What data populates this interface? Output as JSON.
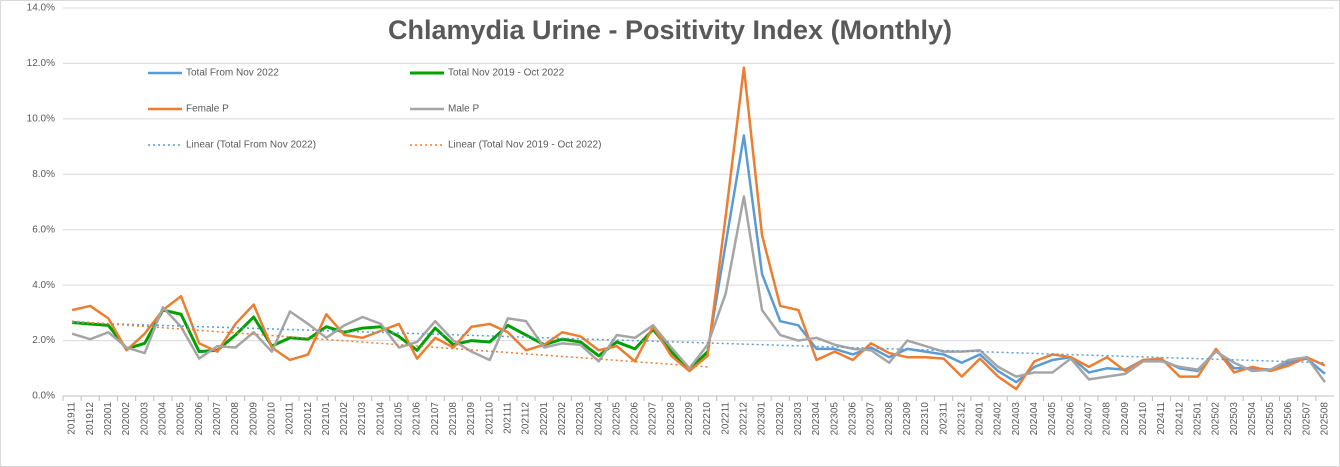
{
  "chart_data": {
    "type": "line",
    "title": "Chlamydia Urine - Positivity Index (Monthly)",
    "categories": [
      "201911",
      "201912",
      "202001",
      "202002",
      "202003",
      "202004",
      "202005",
      "202006",
      "202007",
      "202008",
      "202009",
      "202010",
      "202011",
      "202012",
      "202101",
      "202102",
      "202103",
      "202104",
      "202105",
      "202106",
      "202107",
      "202108",
      "202109",
      "202110",
      "202111",
      "202112",
      "202201",
      "202202",
      "202203",
      "202204",
      "202205",
      "202206",
      "202207",
      "202208",
      "202209",
      "202210",
      "202211",
      "202212",
      "202301",
      "202302",
      "202303",
      "202304",
      "202305",
      "202306",
      "202307",
      "202308",
      "202309",
      "202310",
      "202311",
      "202312",
      "202401",
      "202402",
      "202403",
      "202404",
      "202405",
      "202406",
      "202407",
      "202408",
      "202409",
      "202410",
      "202411",
      "202412",
      "202501",
      "202502",
      "202503",
      "202504",
      "202505",
      "202506",
      "202507",
      "202508"
    ],
    "series": [
      {
        "name": "Total From Nov 2022",
        "color": "#5b9bd5",
        "width": 2.5,
        "values": [
          null,
          null,
          null,
          null,
          null,
          null,
          null,
          null,
          null,
          null,
          null,
          null,
          null,
          null,
          null,
          null,
          null,
          null,
          null,
          null,
          null,
          null,
          null,
          null,
          null,
          null,
          null,
          null,
          null,
          null,
          null,
          null,
          null,
          null,
          null,
          1.6,
          5.5,
          9.4,
          4.4,
          2.7,
          2.55,
          1.7,
          1.7,
          1.5,
          1.75,
          1.4,
          1.7,
          1.6,
          1.5,
          1.2,
          1.5,
          0.9,
          0.5,
          1.05,
          1.3,
          1.4,
          0.85,
          1.0,
          0.95,
          1.3,
          1.3,
          1.0,
          0.9,
          1.65,
          1.0,
          1.0,
          0.95,
          1.2,
          1.35,
          0.8
        ]
      },
      {
        "name": "Total Nov 2019 - Oct 2022",
        "color": "#00a000",
        "width": 3,
        "values": [
          2.65,
          2.6,
          2.55,
          1.7,
          1.9,
          3.1,
          2.95,
          1.6,
          1.65,
          2.2,
          2.85,
          1.8,
          2.1,
          2.05,
          2.5,
          2.3,
          2.45,
          2.5,
          2.15,
          1.65,
          2.45,
          1.85,
          2.0,
          1.95,
          2.55,
          2.2,
          1.85,
          2.05,
          1.95,
          1.45,
          1.95,
          1.7,
          2.4,
          1.6,
          0.95,
          1.6,
          null,
          null,
          null,
          null,
          null,
          null,
          null,
          null,
          null,
          null,
          null,
          null,
          null,
          null,
          null,
          null,
          null,
          null,
          null,
          null,
          null,
          null,
          null,
          null,
          null,
          null,
          null,
          null,
          null,
          null,
          null,
          null,
          null,
          null
        ]
      },
      {
        "name": "Female P",
        "color": "#ed7d31",
        "width": 2.5,
        "values": [
          3.1,
          3.25,
          2.8,
          1.65,
          2.25,
          3.1,
          3.6,
          1.9,
          1.6,
          2.6,
          3.3,
          1.75,
          1.3,
          1.5,
          2.95,
          2.2,
          2.1,
          2.35,
          2.6,
          1.35,
          2.1,
          1.75,
          2.5,
          2.6,
          2.3,
          1.65,
          1.85,
          2.3,
          2.15,
          1.65,
          1.8,
          1.25,
          2.5,
          1.45,
          0.9,
          1.45,
          6.5,
          11.85,
          5.8,
          3.25,
          3.1,
          1.3,
          1.6,
          1.3,
          1.9,
          1.55,
          1.4,
          1.4,
          1.35,
          0.7,
          1.35,
          0.7,
          0.25,
          1.25,
          1.5,
          1.4,
          1.05,
          1.4,
          0.9,
          1.3,
          1.35,
          0.7,
          0.7,
          1.7,
          0.85,
          1.05,
          0.9,
          1.1,
          1.4,
          1.1
        ]
      },
      {
        "name": "Male P",
        "color": "#a5a5a5",
        "width": 2.5,
        "values": [
          2.25,
          2.05,
          2.3,
          1.75,
          1.55,
          3.2,
          2.5,
          1.35,
          1.8,
          1.75,
          2.3,
          1.6,
          3.05,
          2.6,
          2.1,
          2.55,
          2.85,
          2.6,
          1.75,
          1.95,
          2.7,
          2.0,
          1.6,
          1.3,
          2.8,
          2.7,
          1.75,
          1.9,
          1.85,
          1.25,
          2.2,
          2.1,
          2.55,
          1.75,
          1.0,
          1.85,
          3.7,
          7.2,
          3.1,
          2.2,
          2.0,
          2.1,
          1.85,
          1.7,
          1.65,
          1.2,
          2.0,
          1.8,
          1.6,
          1.6,
          1.65,
          1.05,
          0.7,
          0.85,
          0.85,
          1.35,
          0.6,
          0.7,
          0.8,
          1.25,
          1.25,
          1.05,
          0.95,
          1.6,
          1.2,
          0.9,
          0.95,
          1.3,
          1.4,
          0.5
        ]
      }
    ],
    "trendlines": [
      {
        "name": "Linear (Total From Nov 2022)",
        "color": "#5b9bd5",
        "x": [
          "201911",
          "202508"
        ],
        "values": [
          2.65,
          1.2
        ]
      },
      {
        "name": "Linear (Total Nov 2019 - Oct 2022)",
        "color": "#ed7d31",
        "x": [
          "201911",
          "202210"
        ],
        "values": [
          2.7,
          1.05
        ]
      }
    ],
    "ylim": [
      0,
      14
    ],
    "yticks": [
      {
        "value": 0,
        "label": "0.0%"
      },
      {
        "value": 2,
        "label": "2.0%"
      },
      {
        "value": 4,
        "label": "4.0%"
      },
      {
        "value": 6,
        "label": "6.0%"
      },
      {
        "value": 8,
        "label": "8.0%"
      },
      {
        "value": 10,
        "label": "10.0%"
      },
      {
        "value": 12,
        "label": "12.0%"
      },
      {
        "value": 14,
        "label": "14.0%"
      }
    ],
    "grid": true
  }
}
